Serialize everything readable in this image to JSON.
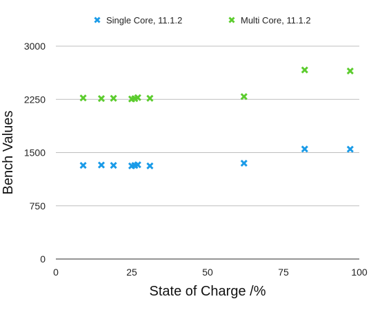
{
  "chart_data": {
    "type": "scatter",
    "title": "",
    "xlabel": "State of Charge /%",
    "ylabel": "Bench Values",
    "xlim": [
      0,
      100
    ],
    "ylim": [
      0,
      3000
    ],
    "xticks": [
      "0",
      "25",
      "50",
      "75",
      "100"
    ],
    "yticks": [
      "0",
      "750",
      "1500",
      "2250",
      "3000"
    ],
    "grid": "horizontal",
    "legend_placement": "top",
    "series": [
      {
        "name": "Single Core, 11.1.2",
        "color": "#1a9be8",
        "marker": "x",
        "x": [
          9,
          15,
          19,
          25,
          26,
          27,
          31,
          62,
          82,
          97
        ],
        "y": [
          1320,
          1325,
          1320,
          1312,
          1318,
          1328,
          1312,
          1350,
          1550,
          1548
        ]
      },
      {
        "name": "Multi Core, 11.1.2",
        "color": "#5ccc2e",
        "marker": "x",
        "x": [
          9,
          15,
          19,
          25,
          26,
          27,
          31,
          62,
          82,
          97
        ],
        "y": [
          2270,
          2262,
          2265,
          2255,
          2260,
          2275,
          2265,
          2290,
          2665,
          2650
        ]
      }
    ]
  }
}
